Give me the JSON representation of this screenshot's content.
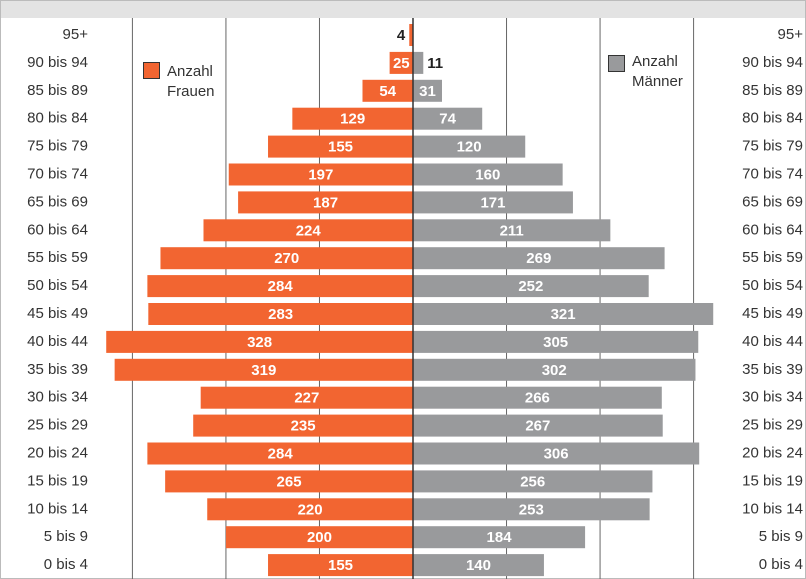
{
  "chart_data": {
    "type": "pyramid",
    "categories": [
      "95+",
      "90 bis 94",
      "85 bis 89",
      "80 bis 84",
      "75 bis 79",
      "70 bis 74",
      "65 bis 69",
      "60 bis 64",
      "55 bis 59",
      "50 bis 54",
      "45 bis 49",
      "40 bis 44",
      "35 bis 39",
      "30 bis 34",
      "25 bis 29",
      "20 bis 24",
      "15 bis 19",
      "10 bis 14",
      "5 bis 9",
      "0 bis 4"
    ],
    "series": [
      {
        "name": "Anzahl Frauen",
        "color": "#f26531",
        "side": "left",
        "values": [
          4,
          25,
          54,
          129,
          155,
          197,
          187,
          224,
          270,
          284,
          283,
          328,
          319,
          227,
          235,
          284,
          265,
          220,
          200,
          155
        ]
      },
      {
        "name": "Anzahl Männer",
        "color": "#999a9c",
        "side": "right",
        "values": [
          null,
          11,
          31,
          74,
          120,
          160,
          171,
          211,
          269,
          252,
          321,
          305,
          302,
          266,
          267,
          306,
          256,
          253,
          184,
          140
        ]
      }
    ],
    "xlim": [
      -340,
      340
    ],
    "gridlines": [
      -300,
      -200,
      -100,
      0,
      100,
      200,
      300
    ],
    "grid": true
  }
}
